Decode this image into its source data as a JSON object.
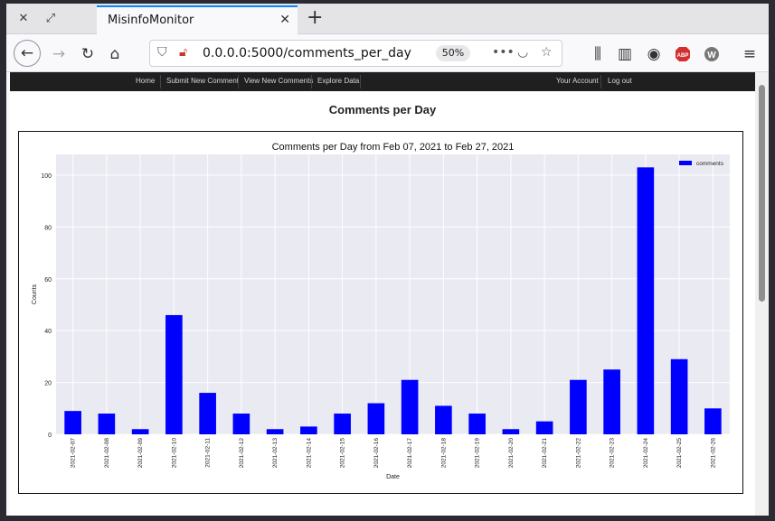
{
  "browser": {
    "tab_title": "MisinfoMonitor",
    "url": "0.0.0.0:5000/comments_per_day",
    "zoom": "50%"
  },
  "site_nav": {
    "home": "Home",
    "submit": "Submit New Comment",
    "view": "View New Comments",
    "explore": "Explore Data",
    "account": "Your Account",
    "logout": "Log out"
  },
  "page": {
    "title": "Comments per Day"
  },
  "chart_data": {
    "type": "bar",
    "title": "Comments per Day from Feb 07, 2021 to Feb 27, 2021",
    "xlabel": "Date",
    "ylabel": "Counts",
    "ylim": [
      0,
      108
    ],
    "yticks": [
      0,
      20,
      40,
      60,
      80,
      100
    ],
    "grid": true,
    "legend_position": "top-right",
    "bar_color": "#0000ff",
    "categories": [
      "2021-02-07",
      "2021-02-08",
      "2021-02-09",
      "2021-02-10",
      "2021-02-11",
      "2021-02-12",
      "2021-02-13",
      "2021-02-14",
      "2021-02-15",
      "2021-02-16",
      "2021-02-17",
      "2021-02-18",
      "2021-02-19",
      "2021-02-20",
      "2021-02-21",
      "2021-02-22",
      "2021-02-23",
      "2021-02-24",
      "2021-02-25",
      "2021-02-26"
    ],
    "series": [
      {
        "name": "comments",
        "values": [
          9,
          8,
          2,
          46,
          16,
          8,
          2,
          3,
          8,
          12,
          21,
          11,
          8,
          2,
          5,
          21,
          25,
          103,
          29,
          10
        ]
      }
    ]
  }
}
